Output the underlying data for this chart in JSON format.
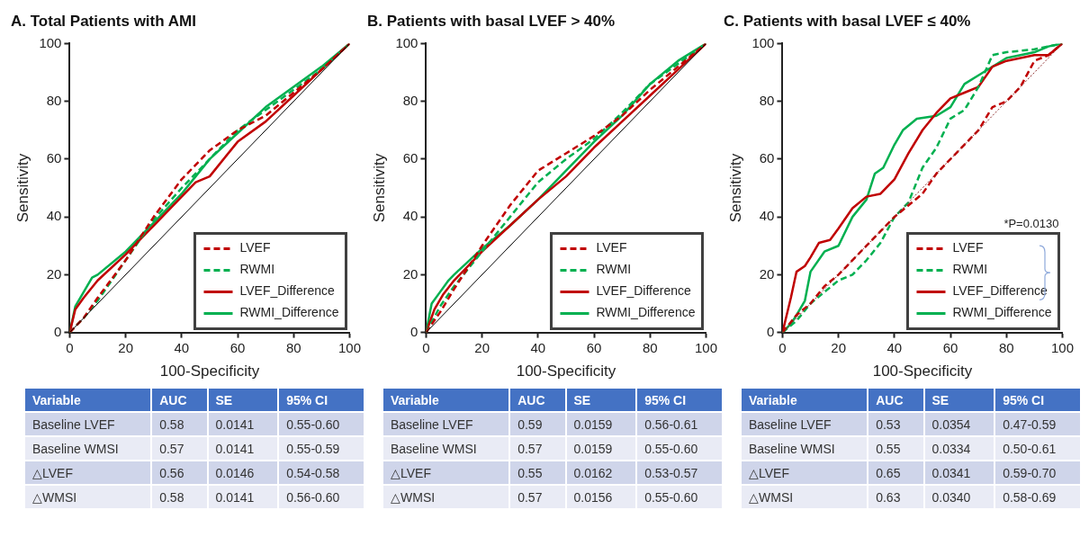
{
  "chart_data": [
    {
      "type": "line",
      "title": "A. Total Patients with AMI",
      "xlabel": "100-Specificity",
      "ylabel": "Sensitivity",
      "xlim": [
        0,
        100
      ],
      "ylim": [
        0,
        100
      ],
      "xticks": [
        0,
        20,
        40,
        60,
        80,
        100
      ],
      "yticks": [
        0,
        20,
        40,
        60,
        80,
        100
      ],
      "grid": false,
      "legend": "bottom right",
      "marker": "none",
      "series": [
        {
          "color": "#000000",
          "line_style": "solid",
          "x": [
            0,
            100
          ],
          "values": [
            0,
            100
          ]
        },
        {
          "name": "LVEF",
          "color": "#c00000",
          "line_style": "dashed",
          "x": [
            0,
            5,
            10,
            20,
            30,
            40,
            50,
            60,
            70,
            80,
            90,
            100
          ],
          "values": [
            0,
            5,
            12,
            25,
            40,
            53,
            63,
            70,
            75,
            83,
            91,
            100
          ]
        },
        {
          "name": "RWMI",
          "color": "#00b050",
          "line_style": "dashed",
          "x": [
            0,
            5,
            10,
            20,
            30,
            40,
            50,
            60,
            70,
            80,
            90,
            100
          ],
          "values": [
            0,
            5,
            11,
            25,
            39,
            50,
            60,
            70,
            77,
            84,
            91,
            100
          ]
        },
        {
          "name": "LVEF_Difference",
          "color": "#c00000",
          "line_style": "solid",
          "x": [
            0,
            2,
            5,
            10,
            20,
            30,
            40,
            45,
            50,
            60,
            70,
            80,
            90,
            100
          ],
          "values": [
            0,
            8,
            12,
            18,
            27,
            37,
            47,
            52,
            54,
            66,
            73,
            82,
            91,
            100
          ]
        },
        {
          "name": "RWMI_Difference",
          "color": "#00b050",
          "line_style": "solid",
          "x": [
            0,
            2,
            5,
            8,
            10,
            20,
            30,
            40,
            45,
            50,
            60,
            70,
            80,
            90,
            100
          ],
          "values": [
            0,
            9,
            14,
            19,
            20,
            28,
            38,
            48,
            54,
            60,
            69,
            78,
            85,
            92,
            100
          ]
        }
      ]
    },
    {
      "type": "line",
      "title": "B. Patients with basal LVEF > 40%",
      "xlabel": "100-Specificity",
      "ylabel": "Sensitivity",
      "xlim": [
        0,
        100
      ],
      "ylim": [
        0,
        100
      ],
      "xticks": [
        0,
        20,
        40,
        60,
        80,
        100
      ],
      "yticks": [
        0,
        20,
        40,
        60,
        80,
        100
      ],
      "grid": false,
      "legend": "bottom right",
      "marker": "none",
      "series": [
        {
          "color": "#000000",
          "line_style": "solid",
          "x": [
            0,
            100
          ],
          "values": [
            0,
            100
          ]
        },
        {
          "name": "LVEF",
          "color": "#c00000",
          "line_style": "dashed",
          "x": [
            0,
            5,
            10,
            20,
            30,
            40,
            50,
            60,
            70,
            80,
            90,
            100
          ],
          "values": [
            0,
            7,
            15,
            30,
            44,
            56,
            62,
            68,
            75,
            84,
            92,
            100
          ]
        },
        {
          "name": "RWMI",
          "color": "#00b050",
          "line_style": "dashed",
          "x": [
            0,
            5,
            10,
            20,
            30,
            40,
            50,
            60,
            70,
            80,
            90,
            100
          ],
          "values": [
            0,
            9,
            16,
            28,
            40,
            52,
            60,
            67,
            76,
            86,
            93,
            100
          ]
        },
        {
          "name": "LVEF_Difference",
          "color": "#c00000",
          "line_style": "solid",
          "x": [
            0,
            3,
            6,
            10,
            20,
            30,
            40,
            50,
            60,
            70,
            80,
            90,
            100
          ],
          "values": [
            0,
            8,
            13,
            18,
            28,
            37,
            46,
            54,
            64,
            73,
            82,
            91,
            100
          ]
        },
        {
          "name": "RWMI_Difference",
          "color": "#00b050",
          "line_style": "solid",
          "x": [
            0,
            2,
            5,
            8,
            10,
            20,
            30,
            40,
            50,
            60,
            70,
            80,
            90,
            100
          ],
          "values": [
            0,
            10,
            14,
            18,
            20,
            29,
            37,
            46,
            56,
            66,
            75,
            86,
            94,
            100
          ]
        }
      ]
    },
    {
      "type": "line",
      "title": "C. Patients with basal LVEF ≤ 40%",
      "xlabel": "100-Specificity",
      "ylabel": "Sensitivity",
      "xlim": [
        0,
        100
      ],
      "ylim": [
        0,
        100
      ],
      "xticks": [
        0,
        20,
        40,
        60,
        80,
        100
      ],
      "yticks": [
        0,
        20,
        40,
        60,
        80,
        100
      ],
      "grid": false,
      "legend": "bottom right",
      "marker": "none",
      "annotations": [
        "*P=0.0130"
      ],
      "series": [
        {
          "color": "#8b2a2a",
          "line_style": "dotted",
          "x": [
            0,
            100
          ],
          "values": [
            0,
            100
          ]
        },
        {
          "name": "LVEF",
          "color": "#c00000",
          "line_style": "dashed",
          "x": [
            0,
            5,
            10,
            15,
            20,
            30,
            35,
            40,
            45,
            50,
            55,
            60,
            65,
            70,
            75,
            80,
            85,
            90,
            95,
            100
          ],
          "values": [
            0,
            6,
            10,
            16,
            20,
            30,
            35,
            40,
            44,
            48,
            55,
            60,
            65,
            70,
            78,
            80,
            85,
            94,
            96,
            100
          ]
        },
        {
          "name": "RWMI",
          "color": "#00b050",
          "line_style": "dashed",
          "x": [
            0,
            5,
            10,
            15,
            20,
            25,
            30,
            35,
            40,
            45,
            50,
            55,
            60,
            65,
            70,
            75,
            80,
            90,
            100
          ],
          "values": [
            0,
            4,
            10,
            14,
            18,
            20,
            25,
            31,
            40,
            45,
            57,
            64,
            74,
            77,
            85,
            96,
            97,
            98,
            100
          ]
        },
        {
          "name": "LVEF_Difference",
          "color": "#c00000",
          "line_style": "solid",
          "x": [
            0,
            1,
            3,
            5,
            8,
            10,
            13,
            17,
            20,
            25,
            30,
            35,
            40,
            45,
            50,
            55,
            60,
            65,
            70,
            75,
            80,
            90,
            95,
            100
          ],
          "values": [
            0,
            4,
            12,
            21,
            23,
            26,
            31,
            32,
            36,
            43,
            47,
            48,
            53,
            62,
            70,
            76,
            81,
            83,
            85,
            92,
            94,
            96,
            96,
            100
          ]
        },
        {
          "name": "RWMI_Difference",
          "color": "#00b050",
          "line_style": "solid",
          "x": [
            0,
            3,
            5,
            8,
            10,
            15,
            20,
            25,
            30,
            33,
            36,
            40,
            43,
            48,
            55,
            60,
            65,
            70,
            80,
            90,
            95,
            100
          ],
          "values": [
            0,
            3,
            6,
            11,
            21,
            28,
            30,
            40,
            46,
            55,
            57,
            65,
            70,
            74,
            75,
            78,
            86,
            89,
            95,
            97,
            99,
            100
          ]
        }
      ]
    },
    {
      "type": "other",
      "categories": [
        "Variable",
        "AUC",
        "SE",
        "95% CI"
      ],
      "annotations": [
        "Baseline LVEF",
        "0.58",
        "0.0141",
        "0.55-0.60",
        "Baseline WMSI",
        "0.57",
        "0.0141",
        "0.55-0.59",
        "△LVEF",
        "0.56",
        "0.0146",
        "0.54-0.58",
        "△WMSI",
        "0.58",
        "0.0141",
        "0.56-0.60"
      ]
    },
    {
      "type": "other",
      "categories": [
        "Variable",
        "AUC",
        "SE",
        "95% CI"
      ],
      "annotations": [
        "Baseline LVEF",
        "0.59",
        "0.0159",
        "0.56-0.61",
        "Baseline WMSI",
        "0.57",
        "0.0159",
        "0.55-0.60",
        "△LVEF",
        "0.55",
        "0.0162",
        "0.53-0.57",
        "△WMSI",
        "0.57",
        "0.0156",
        "0.55-0.60"
      ]
    },
    {
      "type": "other",
      "categories": [
        "Variable",
        "AUC",
        "SE",
        "95% CI"
      ],
      "annotations": [
        "Baseline LVEF",
        "0.53",
        "0.0354",
        "0.47-0.59",
        "Baseline WMSI",
        "0.55",
        "0.0334",
        "0.50-0.61",
        "△LVEF",
        "0.65",
        "0.0341",
        "0.59-0.70",
        "△WMSI",
        "0.63",
        "0.0340",
        "0.58-0.69"
      ]
    }
  ]
}
